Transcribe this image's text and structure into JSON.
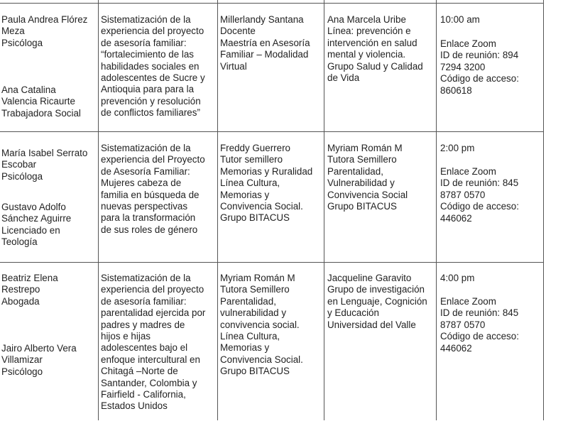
{
  "rows": [
    {
      "presenters": [
        "Paula Andrea Flórez\nMeza\nPsicóloga",
        "Ana Catalina\nValencia Ricaurte\nTrabajadora Social"
      ],
      "title": "Sistematización de la\nexperiencia del proyecto\nde asesoría familiar:\n“fortalecimiento de las\nhabilidades sociales en\nadolescentes de Sucre y\nAntioquia para para la\nprevención y resolución\nde conflictos familiares”",
      "advisor": "Millerlandy Santana\nDocente\nMaestría en Asesoría\nFamiliar – Modalidad\nVirtual",
      "commentator": "Ana Marcela Uribe\nLínea: prevención e\nintervención en salud\nmental y violencia.\nGrupo  Salud y Calidad\nde Vida",
      "time": "10:00 am",
      "link": "Enlace Zoom\nID de reunión: 894\n7294 3200\nCódigo de acceso:\n860618"
    },
    {
      "presenters": [
        "María Isabel Serrato\nEscobar\nPsicóloga",
        "Gustavo Adolfo\nSánchez Aguirre\nLicenciado en\nTeología"
      ],
      "title": "Sistematización de la\nexperiencia del Proyecto\nde Asesoría Familiar:\nMujeres cabeza de\nfamilia en búsqueda de\nnuevas perspectivas\npara la transformación\nde sus roles de género",
      "advisor": "Freddy Guerrero\nTutor semillero\nMemorias y Ruralidad\nLínea Cultura,\nMemorias y\nConvivencia Social.\nGrupo BITACUS",
      "commentator": "Myriam Román M\nTutora Semillero\nParentalidad,\nVulnerabilidad y\nConvivencia Social\nGrupo BITACUS",
      "time": "2:00 pm",
      "link": "Enlace Zoom\nID de reunión: 845\n8787 0570\nCódigo de acceso:\n446062"
    },
    {
      "presenters": [
        "Beatriz Elena\nRestrepo\nAbogada",
        "Jairo Alberto Vera\nVillamizar\nPsicólogo"
      ],
      "title": "Sistematización de la\nexperiencia del proyecto\nde asesoría familiar:\nparentalidad ejercida por\npadres y madres de\nhijos e hijas\nadolescentes bajo el\nenfoque intercultural en\nChitagá –Norte de\nSantander, Colombia y\nFairfield - California,\nEstados Unidos",
      "advisor": "Myriam Román M\nTutora Semillero\nParentalidad,\nvulnerabilidad y\nconvivencia social.\n Línea Cultura,\nMemorias y\nConvivencia Social.\nGrupo BITACUS",
      "commentator": "Jacqueline Garavito\nGrupo de investigación\nen Lenguaje, Cognición\ny Educación\nUniversidad del Valle",
      "time": "4:00 pm",
      "link": "Enlace Zoom\nID de reunión: 845\n8787 0570\nCódigo de acceso:\n446062"
    }
  ]
}
